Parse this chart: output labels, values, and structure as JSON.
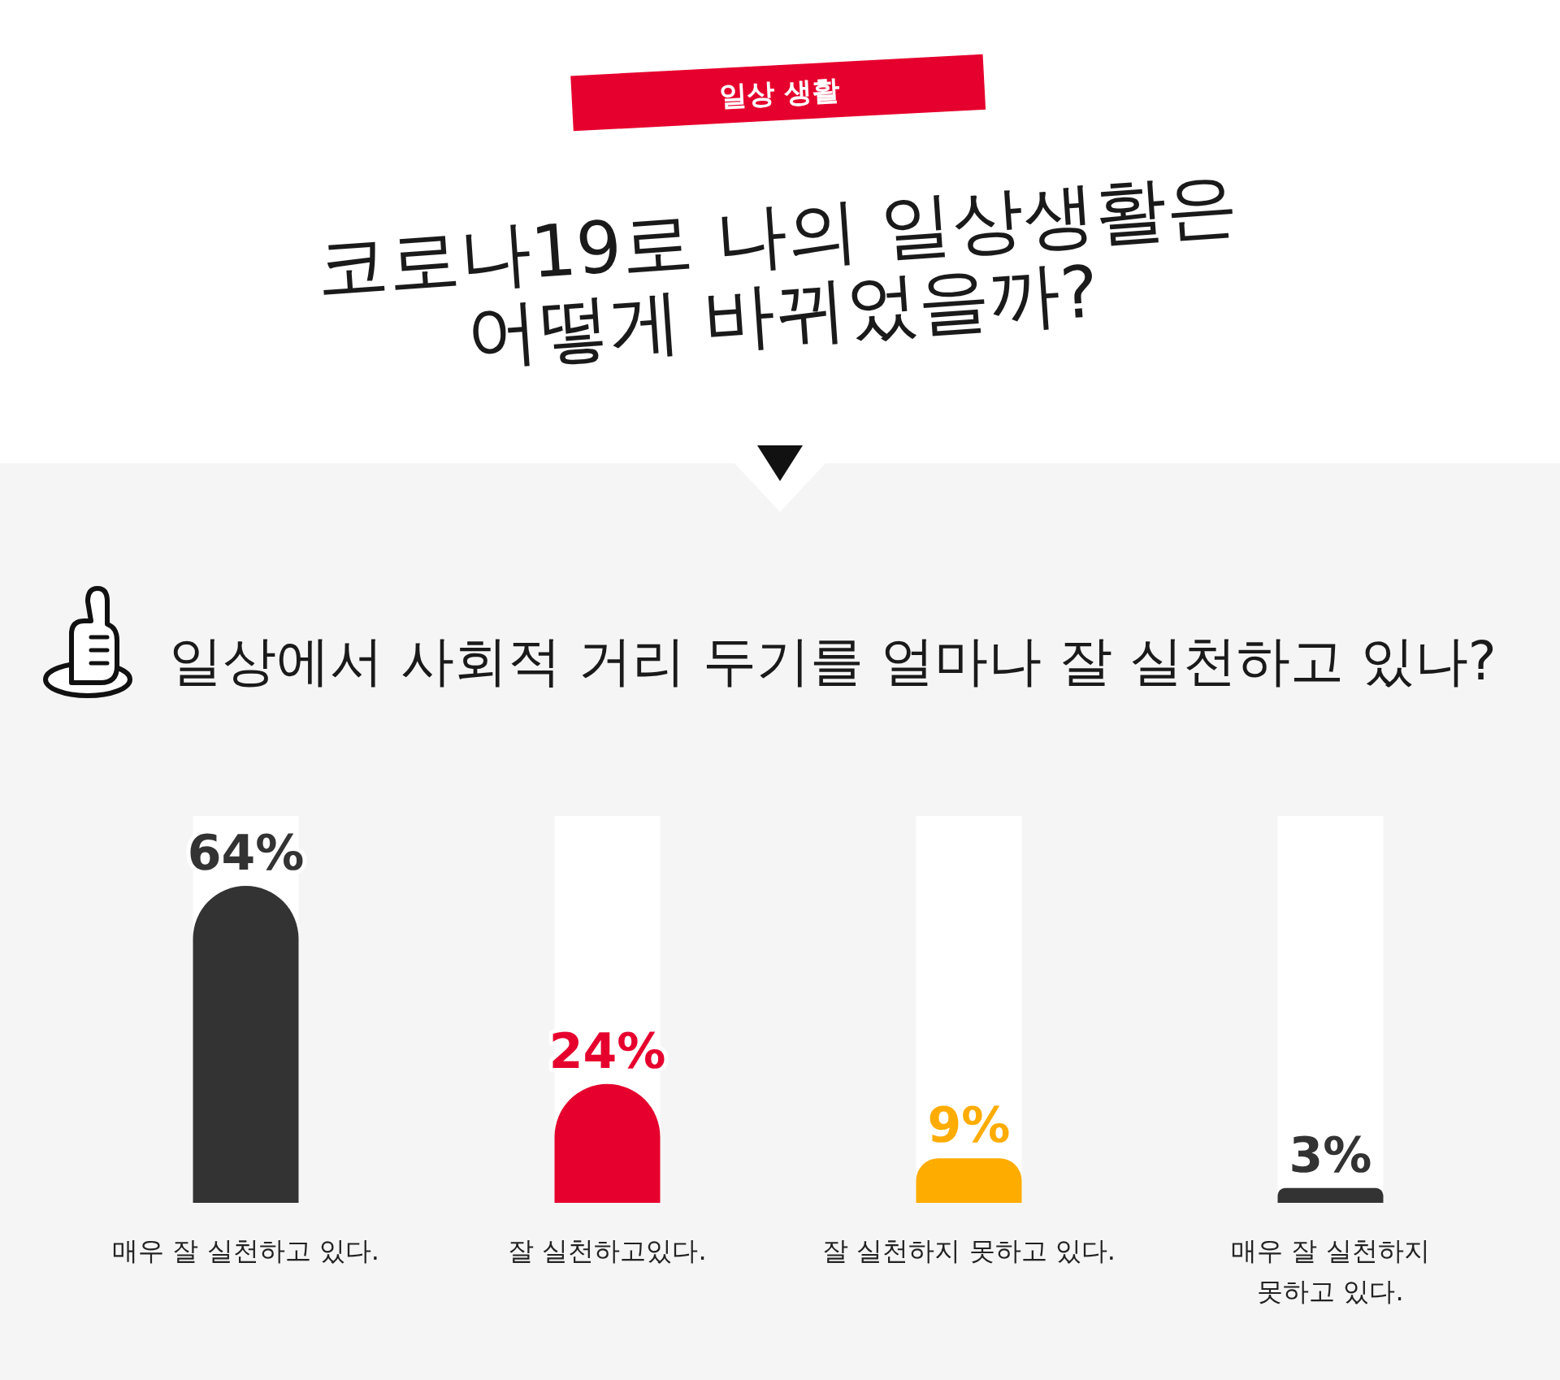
{
  "chart_data": {
    "type": "bar",
    "title": "코로나19로 나의 일상생활은 어떻게 바뀌었을까?",
    "subtitle": "일상에서 사회적 거리 두기를 얼마나 잘 실천하고 있나?",
    "annotations": [
      "일상 생활"
    ],
    "categories": [
      "매우 잘 실천하고 있다.",
      "잘 실천하고있다.",
      "잘 실천하지 못하고 있다.",
      "매우 잘 실천하지 못하고 있다."
    ],
    "values": [
      64,
      24,
      9,
      3
    ],
    "colors": [
      "#333333",
      "#e6002d",
      "#ffac00",
      "#333333"
    ],
    "value_labels": [
      "64%",
      "24%",
      "9%",
      "3%"
    ]
  }
}
